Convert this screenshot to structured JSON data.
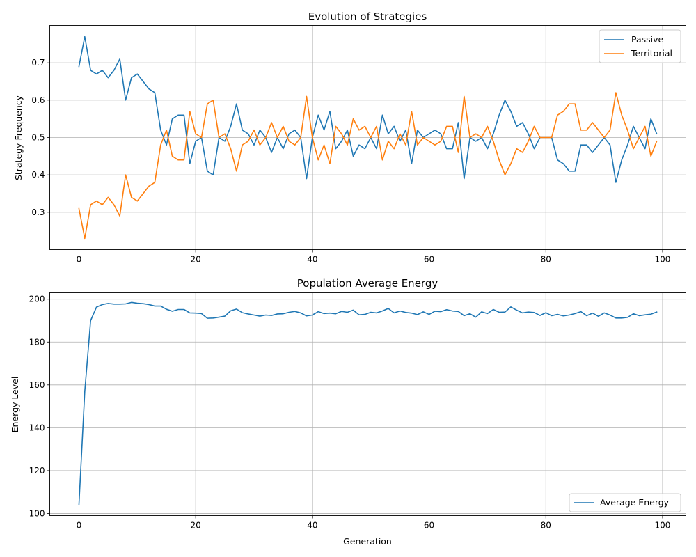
{
  "chart_data": [
    {
      "type": "line",
      "title": "Evolution of Strategies",
      "xlabel": "",
      "ylabel": "Strategy Frequency",
      "xlim": [
        -5,
        104
      ],
      "ylim": [
        0.2,
        0.8
      ],
      "xticks": [
        0,
        20,
        40,
        60,
        80,
        100
      ],
      "yticks": [
        0.3,
        0.4,
        0.5,
        0.6,
        0.7
      ],
      "ytick_format": 1,
      "grid": true,
      "legend_position": "top-right",
      "series": [
        {
          "name": "Passive",
          "color": "#1f77b4",
          "values": [
            0.69,
            0.77,
            0.68,
            0.67,
            0.68,
            0.66,
            0.68,
            0.71,
            0.6,
            0.66,
            0.67,
            0.65,
            0.63,
            0.62,
            0.52,
            0.48,
            0.55,
            0.56,
            0.56,
            0.43,
            0.49,
            0.5,
            0.41,
            0.4,
            0.5,
            0.49,
            0.53,
            0.59,
            0.52,
            0.51,
            0.48,
            0.52,
            0.5,
            0.46,
            0.5,
            0.47,
            0.51,
            0.52,
            0.5,
            0.39,
            0.5,
            0.56,
            0.52,
            0.57,
            0.47,
            0.49,
            0.52,
            0.45,
            0.48,
            0.47,
            0.5,
            0.47,
            0.56,
            0.51,
            0.53,
            0.49,
            0.52,
            0.43,
            0.52,
            0.5,
            0.51,
            0.52,
            0.51,
            0.47,
            0.47,
            0.54,
            0.39,
            0.5,
            0.49,
            0.5,
            0.47,
            0.51,
            0.56,
            0.6,
            0.57,
            0.53,
            0.54,
            0.51,
            0.47,
            0.5,
            0.5,
            0.5,
            0.44,
            0.43,
            0.41,
            0.41,
            0.48,
            0.48,
            0.46,
            0.48,
            0.5,
            0.48,
            0.38,
            0.44,
            0.48,
            0.53,
            0.5,
            0.47,
            0.55,
            0.51
          ]
        },
        {
          "name": "Territorial",
          "color": "#ff7f0e",
          "values": [
            0.31,
            0.23,
            0.32,
            0.33,
            0.32,
            0.34,
            0.32,
            0.29,
            0.4,
            0.34,
            0.33,
            0.35,
            0.37,
            0.38,
            0.48,
            0.52,
            0.45,
            0.44,
            0.44,
            0.57,
            0.51,
            0.5,
            0.59,
            0.6,
            0.5,
            0.51,
            0.47,
            0.41,
            0.48,
            0.49,
            0.52,
            0.48,
            0.5,
            0.54,
            0.5,
            0.53,
            0.49,
            0.48,
            0.5,
            0.61,
            0.5,
            0.44,
            0.48,
            0.43,
            0.53,
            0.51,
            0.48,
            0.55,
            0.52,
            0.53,
            0.5,
            0.53,
            0.44,
            0.49,
            0.47,
            0.51,
            0.48,
            0.57,
            0.48,
            0.5,
            0.49,
            0.48,
            0.49,
            0.53,
            0.53,
            0.46,
            0.61,
            0.5,
            0.51,
            0.5,
            0.53,
            0.49,
            0.44,
            0.4,
            0.43,
            0.47,
            0.46,
            0.49,
            0.53,
            0.5,
            0.5,
            0.5,
            0.56,
            0.57,
            0.59,
            0.59,
            0.52,
            0.52,
            0.54,
            0.52,
            0.5,
            0.52,
            0.62,
            0.56,
            0.52,
            0.47,
            0.5,
            0.53,
            0.45,
            0.49
          ]
        }
      ]
    },
    {
      "type": "line",
      "title": "Population Average Energy",
      "xlabel": "Generation",
      "ylabel": "Energy Level",
      "xlim": [
        -5,
        104
      ],
      "ylim": [
        99,
        203
      ],
      "xticks": [
        0,
        20,
        40,
        60,
        80,
        100
      ],
      "yticks": [
        100,
        120,
        140,
        160,
        180,
        200
      ],
      "ytick_format": 0,
      "grid": true,
      "legend_position": "bottom-right",
      "series": [
        {
          "name": "Average Energy",
          "color": "#1f77b4",
          "values": [
            104,
            157,
            190,
            196.3,
            197.5,
            198,
            197.7,
            197.7,
            197.8,
            198.5,
            198.1,
            197.9,
            197.5,
            196.8,
            196.8,
            195.3,
            194.4,
            195.2,
            195.2,
            193.6,
            193.5,
            193.3,
            191.1,
            191.2,
            191.6,
            192.1,
            194.6,
            195.4,
            193.7,
            193.1,
            192.6,
            192.1,
            192.6,
            192.4,
            193.1,
            193.2,
            193.9,
            194.3,
            193.6,
            192.2,
            192.6,
            194.2,
            193.3,
            193.5,
            193.2,
            194.3,
            193.9,
            194.9,
            192.7,
            192.9,
            193.9,
            193.6,
            194.5,
            195.7,
            193.6,
            194.5,
            193.8,
            193.5,
            192.8,
            194.1,
            192.9,
            194.4,
            194.2,
            195.1,
            194.5,
            194.3,
            192.3,
            193.2,
            191.6,
            194.1,
            193.3,
            195.2,
            193.9,
            194,
            196.4,
            194.9,
            193.6,
            194,
            193.8,
            192.4,
            193.7,
            192.3,
            192.9,
            192.2,
            192.6,
            193.3,
            194.2,
            192.3,
            193.5,
            192,
            193.6,
            192.6,
            191.2,
            191.2,
            191.5,
            193.2,
            192.3,
            192.7,
            193,
            194
          ]
        }
      ]
    }
  ]
}
